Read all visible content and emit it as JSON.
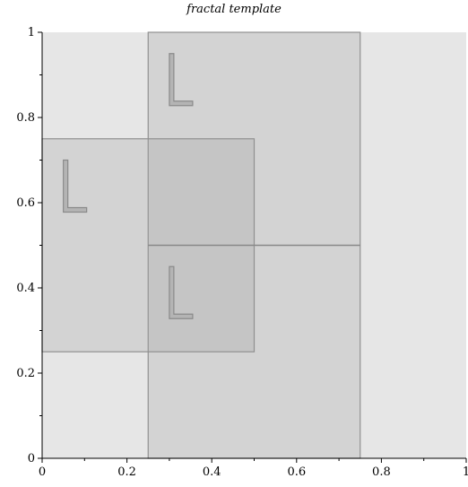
{
  "chart_data": {
    "type": "diagram",
    "title": "fractal template",
    "xlim": [
      0,
      1
    ],
    "ylim": [
      0,
      1
    ],
    "x_ticks": [
      0,
      0.2,
      0.4,
      0.6,
      0.8,
      1
    ],
    "y_ticks": [
      0,
      0.2,
      0.4,
      0.6,
      0.8,
      1
    ],
    "x_tick_labels": [
      "0",
      "0.2",
      "0.4",
      "0.6",
      "0.8",
      "1"
    ],
    "y_tick_labels": [
      "0",
      "0.2",
      "0.4",
      "0.6",
      "0.8",
      "1"
    ],
    "background_region": {
      "x0": 0,
      "x1": 1,
      "y0": 0,
      "y1": 1,
      "color": "#e6e6e6"
    },
    "rectangles": [
      {
        "name": "rect-large",
        "x0": 0.25,
        "x1": 0.75,
        "y0": 0,
        "y1": 1
      },
      {
        "name": "rect-left",
        "x0": 0,
        "x1": 0.5,
        "y0": 0.25,
        "y1": 0.75
      }
    ],
    "divider": {
      "x0": 0.25,
      "x1": 0.75,
      "y": 0.5
    },
    "l_glyphs": [
      {
        "name": "l-glyph-top",
        "x": 0.3,
        "y": 0.95
      },
      {
        "name": "l-glyph-left",
        "x": 0.05,
        "y": 0.7
      },
      {
        "name": "l-glyph-center",
        "x": 0.3,
        "y": 0.45
      }
    ],
    "colors": {
      "background": "#e6e6e6",
      "rect_fill": "#a0a0a0",
      "rect_stroke": "#909090",
      "axis": "#000000"
    }
  }
}
